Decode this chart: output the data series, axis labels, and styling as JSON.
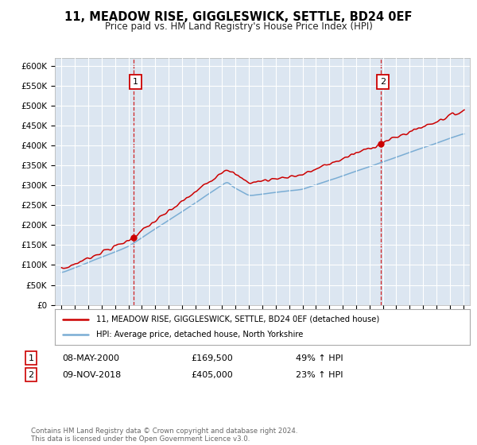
{
  "title": "11, MEADOW RISE, GIGGLESWICK, SETTLE, BD24 0EF",
  "subtitle": "Price paid vs. HM Land Registry's House Price Index (HPI)",
  "bg_color": "#dce6f1",
  "red_color": "#cc0000",
  "blue_color": "#7aadd4",
  "grid_color": "#ffffff",
  "marker1_year": 2000.36,
  "marker1_price": 169500,
  "marker2_year": 2018.85,
  "marker2_price": 405000,
  "legend_line1": "11, MEADOW RISE, GIGGLESWICK, SETTLE, BD24 0EF (detached house)",
  "legend_line2": "HPI: Average price, detached house, North Yorkshire",
  "annotation1_date": "08-MAY-2000",
  "annotation1_price": "£169,500",
  "annotation1_hpi": "49% ↑ HPI",
  "annotation2_date": "09-NOV-2018",
  "annotation2_price": "£405,000",
  "annotation2_hpi": "23% ↑ HPI",
  "footer": "Contains HM Land Registry data © Crown copyright and database right 2024.\nThis data is licensed under the Open Government Licence v3.0.",
  "ylim": [
    0,
    620000
  ],
  "yticks": [
    0,
    50000,
    100000,
    150000,
    200000,
    250000,
    300000,
    350000,
    400000,
    450000,
    500000,
    550000,
    600000
  ],
  "xlim_start": 1994.5,
  "xlim_end": 2025.5
}
